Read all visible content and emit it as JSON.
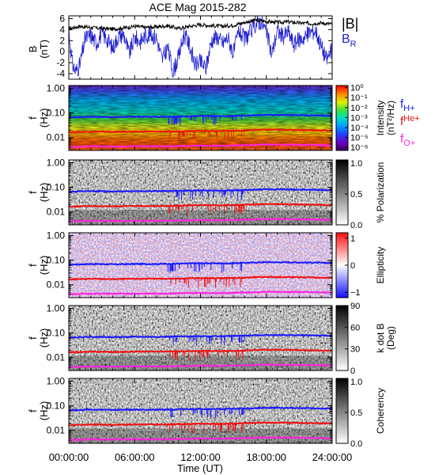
{
  "chart_data": {
    "type": "spectrogram",
    "title": "ACE Mag 2015-282",
    "x_axis": {
      "label": "Time (UT)",
      "range_hours": [
        0,
        24
      ],
      "ticks": [
        "00:00:00",
        "06:00:00",
        "12:00:00",
        "18:00:00",
        "24:00:00"
      ],
      "tick_hours": [
        0,
        6,
        12,
        18,
        24
      ]
    },
    "b_panel": {
      "ylabel_top": "B",
      "ylabel_unit": "(nT)",
      "ylim": [
        -5,
        6.5
      ],
      "yticks": [
        "6",
        "4",
        "2",
        "0",
        "-2",
        "-4"
      ],
      "ytick_values": [
        6,
        4,
        2,
        0,
        -2,
        -4
      ],
      "legend": [
        {
          "label": "|B|",
          "color": "#000000"
        },
        {
          "label": "B",
          "sub": "R",
          "color": "#2020d0"
        }
      ],
      "series": [
        {
          "name": "|B|",
          "color": "#000000",
          "x_hours": [
            0,
            1,
            2,
            3,
            4,
            5,
            6,
            7,
            8,
            9,
            10,
            11,
            12,
            13,
            14,
            15,
            16,
            17,
            18,
            19,
            20,
            21,
            22,
            23,
            24
          ],
          "values": [
            4.2,
            4.6,
            4.4,
            4.2,
            4.1,
            4.3,
            4.6,
            4.4,
            4.5,
            4.7,
            4.2,
            4.6,
            4.9,
            4.7,
            4.6,
            4.8,
            5.3,
            5.7,
            5.5,
            5.3,
            5.4,
            5.2,
            5.1,
            5.2,
            5.0
          ]
        },
        {
          "name": "B",
          "sub": "R",
          "color": "#2020d0",
          "x_hours": [
            0,
            0.3,
            0.6,
            1,
            1.5,
            2,
            2.5,
            3,
            3.5,
            4,
            4.5,
            5,
            5.5,
            6,
            6.5,
            7,
            7.5,
            8,
            8.5,
            9,
            9.5,
            10,
            10.5,
            11,
            11.5,
            12,
            12.5,
            13,
            13.5,
            14,
            14.5,
            15,
            15.5,
            16,
            16.5,
            17,
            17.5,
            18,
            18.5,
            19,
            19.5,
            20,
            20.5,
            21,
            21.5,
            22,
            22.5,
            23,
            23.5,
            24
          ],
          "values": [
            3.8,
            -2.0,
            -3.6,
            -2.5,
            2.4,
            3.0,
            1.5,
            3.3,
            2.2,
            0.6,
            2.8,
            3.2,
            -0.5,
            2.6,
            1.8,
            3.0,
            3.1,
            2.5,
            -1.5,
            0.8,
            -3.6,
            -1.0,
            3.2,
            1.2,
            -2.4,
            -1.9,
            -3.0,
            2.0,
            2.8,
            1.5,
            2.6,
            -0.4,
            3.9,
            2.2,
            3.4,
            4.9,
            5.5,
            3.6,
            -0.5,
            3.9,
            2.7,
            3.6,
            1.3,
            2.2,
            2.6,
            3.6,
            3.8,
            1.0,
            -1.5,
            0.5
          ]
        }
      ]
    },
    "frequency_axis": {
      "ylabel_top": "f",
      "ylabel_unit": "(Hz)",
      "scale": "log",
      "ylim": [
        0.003,
        1.3
      ],
      "yticks": [
        "1.00",
        "0.10",
        "0.01"
      ],
      "ytick_values": [
        1.0,
        0.1,
        0.01
      ]
    },
    "ion_cyclotron_lines": [
      {
        "name": "H+",
        "color": "#1a1aff",
        "x_hours": [
          0,
          2,
          4,
          6,
          8,
          10,
          12,
          14,
          16,
          18,
          20,
          22,
          24
        ],
        "hz": [
          0.066,
          0.07,
          0.068,
          0.07,
          0.07,
          0.072,
          0.075,
          0.074,
          0.078,
          0.083,
          0.082,
          0.08,
          0.077
        ]
      },
      {
        "name": "He+",
        "color": "#ee1111",
        "x_hours": [
          0,
          2,
          4,
          6,
          8,
          10,
          12,
          14,
          16,
          18,
          20,
          22,
          24
        ],
        "hz": [
          0.0165,
          0.0175,
          0.017,
          0.0175,
          0.0175,
          0.018,
          0.0188,
          0.0185,
          0.0195,
          0.021,
          0.0205,
          0.02,
          0.019
        ]
      },
      {
        "name": "O+",
        "color": "#ff22dd",
        "x_hours": [
          0,
          2,
          4,
          6,
          8,
          10,
          12,
          14,
          16,
          18,
          20,
          22,
          24
        ],
        "hz": [
          0.0041,
          0.0044,
          0.0043,
          0.0044,
          0.0044,
          0.0045,
          0.0047,
          0.0046,
          0.0049,
          0.0052,
          0.0051,
          0.005,
          0.0048
        ]
      }
    ],
    "spectrogram_panels": [
      {
        "id": "intensity",
        "colormap": "rainbow",
        "colorbar_label": "Intensity",
        "colorbar_label2": "(nT²/Hz)",
        "colorbar_ticks": [
          "10⁰",
          "10⁻¹",
          "10⁻²",
          "10⁻³",
          "10⁻⁴",
          "10⁻⁵",
          "10⁻⁶"
        ],
        "colorbar_ticks_log": [
          0,
          -1,
          -2,
          -3,
          -4,
          -5,
          -6
        ],
        "colorbar_range": [
          -6.3,
          0.2
        ]
      },
      {
        "id": "polarization",
        "colormap": "gray",
        "colorbar_label": "% Polarization",
        "colorbar_ticks": [
          "1.0",
          "0.5",
          "0.0"
        ],
        "colorbar_tick_values": [
          1.0,
          0.5,
          0.0
        ],
        "colorbar_range": [
          0,
          1.05
        ]
      },
      {
        "id": "ellipticity",
        "colormap": "bwr",
        "colorbar_label": "Ellipticity",
        "colorbar_ticks": [
          "1",
          "0",
          "−1"
        ],
        "colorbar_tick_values": [
          1,
          0,
          -1
        ],
        "colorbar_range": [
          -1.2,
          1.2
        ]
      },
      {
        "id": "kdotb",
        "colormap": "gray",
        "colorbar_label": "k dot B",
        "colorbar_label2": "(Deg)",
        "colorbar_ticks": [
          "90",
          "60",
          "30",
          "0"
        ],
        "colorbar_tick_values": [
          90,
          60,
          30,
          0
        ],
        "colorbar_range": [
          0,
          90
        ]
      },
      {
        "id": "coherency",
        "colormap": "gray",
        "colorbar_label": "Coherency",
        "colorbar_ticks": [
          "1.0",
          "0.5",
          "0.0"
        ],
        "colorbar_tick_values": [
          1.0,
          0.5,
          0.0
        ],
        "colorbar_range": [
          0,
          1.05
        ]
      }
    ]
  }
}
